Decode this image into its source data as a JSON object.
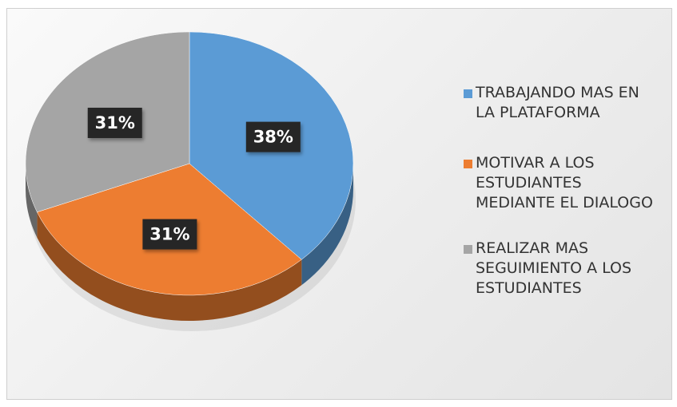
{
  "chart_data": {
    "type": "pie",
    "categories": [
      "TRABAJANDO MAS EN LA PLATAFORMA",
      "MOTIVAR A LOS ESTUDIANTES MEDIANTE EL DIALOGO",
      "REALIZAR  MAS SEGUIMIENTO A LOS ESTUDIANTES"
    ],
    "values": [
      38,
      31,
      31
    ],
    "value_labels": [
      "38%",
      "31%",
      "31%"
    ],
    "colors": [
      "#5b9bd5",
      "#ed7d31",
      "#a5a5a5"
    ],
    "legend": "right"
  }
}
